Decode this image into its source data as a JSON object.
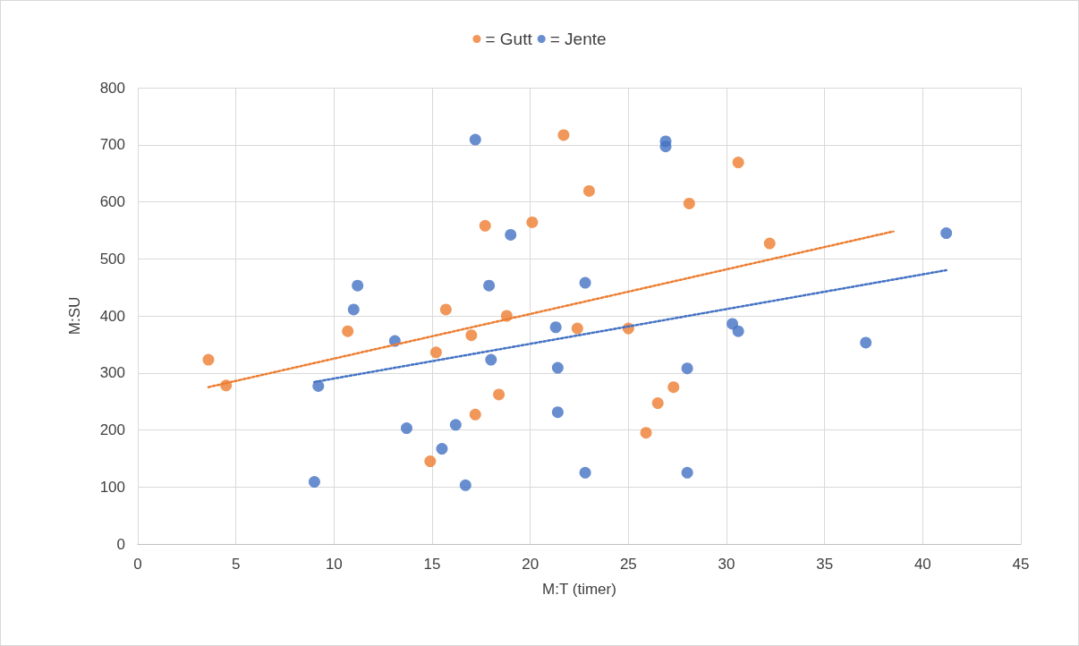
{
  "chart_data": {
    "type": "scatter",
    "xlabel": "M:T (timer)",
    "ylabel": "M:SU",
    "xlim": [
      0,
      45
    ],
    "xticks": [
      0,
      5,
      10,
      15,
      20,
      25,
      30,
      35,
      40,
      45
    ],
    "ylim": [
      0,
      800
    ],
    "yticks": [
      0,
      100,
      200,
      300,
      400,
      500,
      600,
      700,
      800
    ],
    "grid": true,
    "legend": "top",
    "marker": "circle",
    "line_style": "dotted",
    "series": [
      {
        "name": "= Gutt",
        "color": "#ed7d31",
        "x": [
          3.6,
          4.5,
          10.7,
          15.2,
          14.9,
          15.7,
          17.0,
          17.2,
          18.4,
          17.7,
          18.8,
          20.1,
          21.7,
          22.4,
          23.0,
          25.0,
          25.9,
          26.5,
          27.3,
          28.1,
          30.6,
          32.2
        ],
        "values": [
          323,
          278,
          373,
          336,
          145,
          411,
          366,
          227,
          262,
          558,
          400,
          564,
          717,
          378,
          619,
          378,
          195,
          247,
          275,
          597,
          669,
          527
        ]
      },
      {
        "name": "= Jente",
        "color": "#4472c4",
        "x": [
          9.0,
          9.2,
          11.0,
          11.2,
          13.1,
          13.7,
          15.5,
          16.2,
          16.7,
          17.2,
          17.9,
          18.0,
          19.0,
          21.3,
          21.4,
          21.4,
          22.8,
          22.8,
          26.9,
          26.9,
          28.0,
          28.0,
          30.3,
          30.6,
          37.1,
          41.2
        ],
        "values": [
          109,
          277,
          411,
          453,
          356,
          203,
          167,
          209,
          103,
          709,
          453,
          323,
          542,
          380,
          309,
          231,
          458,
          125,
          706,
          697,
          308,
          125,
          386,
          373,
          353,
          545
        ]
      },
      {
        "type": "line",
        "marker": "none",
        "color": "#ed7d31",
        "x": [
          3.6,
          38.5
        ],
        "values": [
          275,
          548
        ]
      },
      {
        "type": "line",
        "marker": "none",
        "color": "#4472c4",
        "x": [
          9.0,
          41.2
        ],
        "values": [
          284,
          480
        ]
      }
    ]
  }
}
